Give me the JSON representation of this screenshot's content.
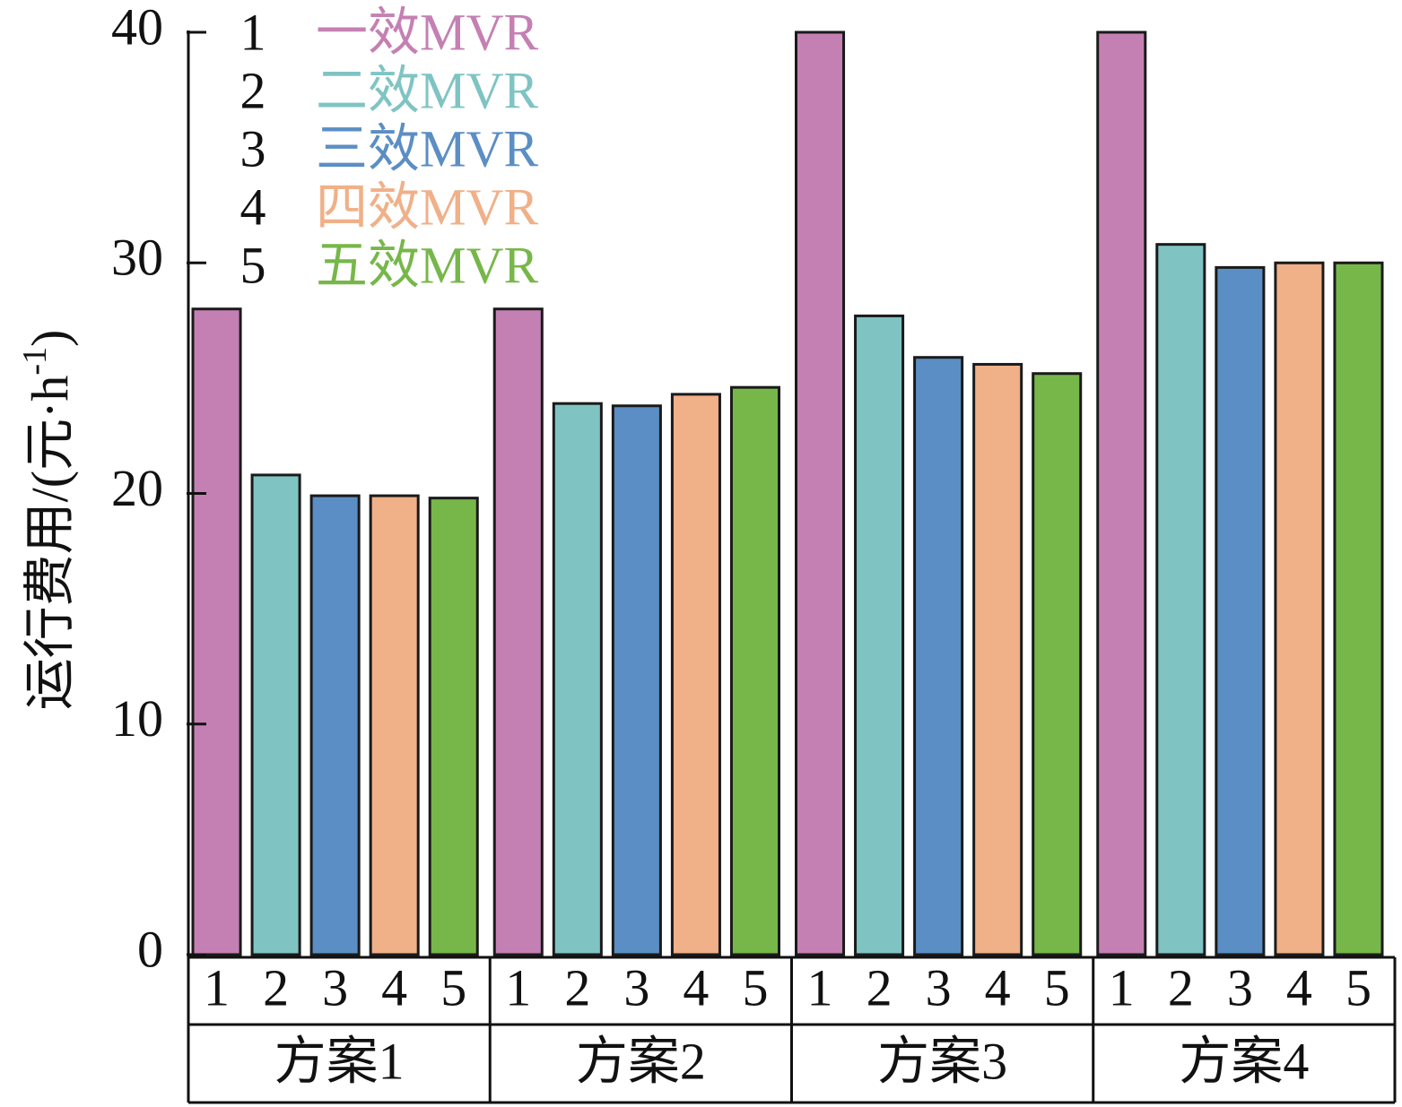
{
  "chart_data": {
    "type": "bar",
    "ylabel": [
      "运行费用/(元·h",
      "-1",
      ")"
    ],
    "categories": [
      "方案1",
      "方案2",
      "方案3",
      "方案4"
    ],
    "series": [
      {
        "id": "1",
        "name": "一效MVR",
        "color": "#c580b3",
        "values": [
          28,
          28,
          40,
          40
        ]
      },
      {
        "id": "2",
        "name": "二效MVR",
        "color": "#7fc4c3",
        "values": [
          20.8,
          23.9,
          27.7,
          30.8
        ]
      },
      {
        "id": "3",
        "name": "三效MVR",
        "color": "#5b8ec4",
        "values": [
          19.9,
          23.8,
          25.9,
          29.8
        ]
      },
      {
        "id": "4",
        "name": "四效MVR",
        "color": "#f0b088",
        "values": [
          19.9,
          24.3,
          25.6,
          30
        ]
      },
      {
        "id": "5",
        "name": "五效MVR",
        "color": "#77b74a",
        "values": [
          19.8,
          24.6,
          25.2,
          30
        ]
      }
    ],
    "ylim": [
      0,
      40
    ],
    "yticks": [
      0,
      10,
      20,
      30,
      40
    ],
    "legend": "upper left"
  }
}
